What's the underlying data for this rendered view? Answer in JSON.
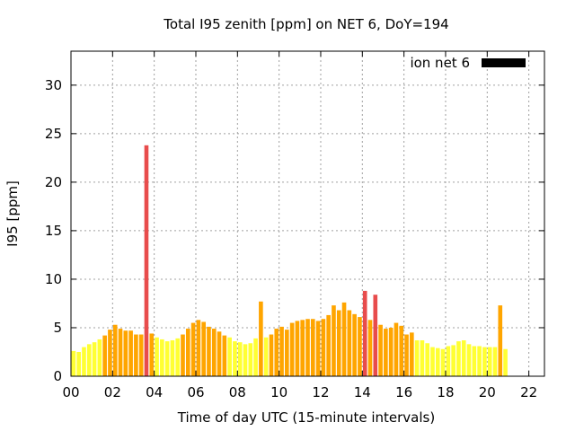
{
  "chart_data": {
    "type": "bar",
    "title": "Total I95 zenith [ppm] on NET 6, DoY=194",
    "xlabel": "Time of day UTC (15-minute intervals)",
    "ylabel": "I95 [ppm]",
    "xlim": [
      0,
      22.75
    ],
    "ylim": [
      0,
      33.5
    ],
    "xticks": [
      {
        "value": 0,
        "label": "00"
      },
      {
        "value": 2,
        "label": "02"
      },
      {
        "value": 4,
        "label": "04"
      },
      {
        "value": 6,
        "label": "06"
      },
      {
        "value": 8,
        "label": "08"
      },
      {
        "value": 10,
        "label": "10"
      },
      {
        "value": 12,
        "label": "12"
      },
      {
        "value": 14,
        "label": "14"
      },
      {
        "value": 16,
        "label": "16"
      },
      {
        "value": 18,
        "label": "18"
      },
      {
        "value": 20,
        "label": "20"
      },
      {
        "value": 22,
        "label": "22"
      }
    ],
    "yticks": [
      0,
      5,
      10,
      15,
      20,
      25,
      30
    ],
    "grid": true,
    "legend": {
      "placement": "top-right",
      "entries": [
        {
          "label": "ion net 6",
          "color": "#000000"
        }
      ]
    },
    "bar_interval_hours": 0.25,
    "color_scale": [
      {
        "max": 4,
        "color": "#ffff33"
      },
      {
        "max": 8,
        "color": "#ffa500"
      },
      {
        "max": 999,
        "color": "#e84c4c"
      }
    ],
    "series": [
      {
        "values": [
          2.6,
          2.5,
          3.0,
          3.3,
          3.5,
          3.8,
          4.2,
          4.8,
          5.3,
          4.9,
          4.7,
          4.7,
          4.3,
          4.3,
          4.2,
          4.4,
          4.0,
          3.8,
          3.6,
          3.7,
          3.9,
          4.3,
          4.9,
          5.5,
          5.8,
          5.6,
          5.1,
          4.9,
          4.6,
          4.2,
          4.0,
          3.6,
          3.5,
          3.3,
          3.4,
          3.9,
          4.0,
          4.0,
          4.3,
          4.9,
          5.1,
          4.8,
          5.5,
          5.7,
          5.8,
          5.9,
          5.9,
          5.7,
          5.9,
          6.3,
          7.3,
          6.8,
          7.6,
          6.8,
          6.4,
          6.1,
          6.4,
          5.8,
          5.6,
          5.3,
          4.9,
          5.0,
          5.5,
          5.2,
          4.3,
          4.5,
          3.7,
          3.7,
          3.4,
          3.0,
          2.9,
          2.8,
          3.1,
          3.2,
          3.6,
          3.7,
          3.3,
          3.1,
          3.1,
          3.0,
          3.0,
          3.0,
          2.9,
          2.8
        ],
        "overrides": [
          {
            "x": 3.5,
            "value": 23.8
          },
          {
            "x": 9.0,
            "value": 7.7
          },
          {
            "x": 14.0,
            "value": 8.8
          },
          {
            "x": 14.5,
            "value": 8.4
          },
          {
            "x": 20.5,
            "value": 7.3
          }
        ]
      }
    ]
  }
}
